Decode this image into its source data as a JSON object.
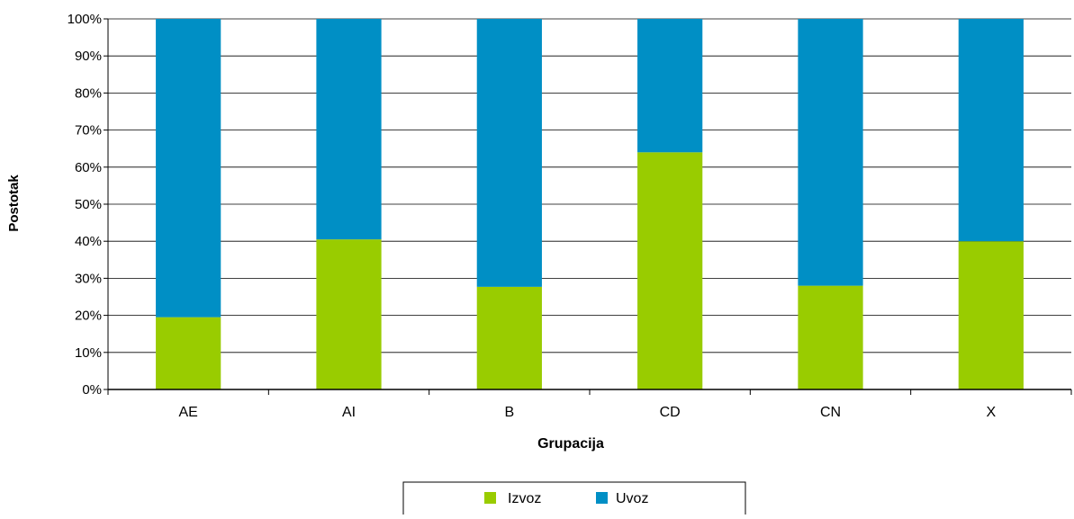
{
  "chart_data": {
    "type": "bar",
    "stacked": true,
    "percent": true,
    "categories": [
      "AE",
      "AI",
      "B",
      "CD",
      "CN",
      "X"
    ],
    "series": [
      {
        "name": "Izvoz",
        "values": [
          19.5,
          40.5,
          27.7,
          64.0,
          28.0,
          40.0
        ]
      },
      {
        "name": "Uvoz",
        "values": [
          80.5,
          59.5,
          72.3,
          36.0,
          72.0,
          60.0
        ]
      }
    ],
    "xlabel": "Grupacija",
    "ylabel": "Postotak",
    "ylim": [
      0,
      100
    ],
    "yticks": [
      "0%",
      "10%",
      "20%",
      "30%",
      "40%",
      "50%",
      "60%",
      "70%",
      "80%",
      "90%",
      "100%"
    ],
    "grid": true,
    "legend_position": "bottom",
    "colors": {
      "Izvoz": "#99cc00",
      "Uvoz": "#008fc5"
    }
  }
}
